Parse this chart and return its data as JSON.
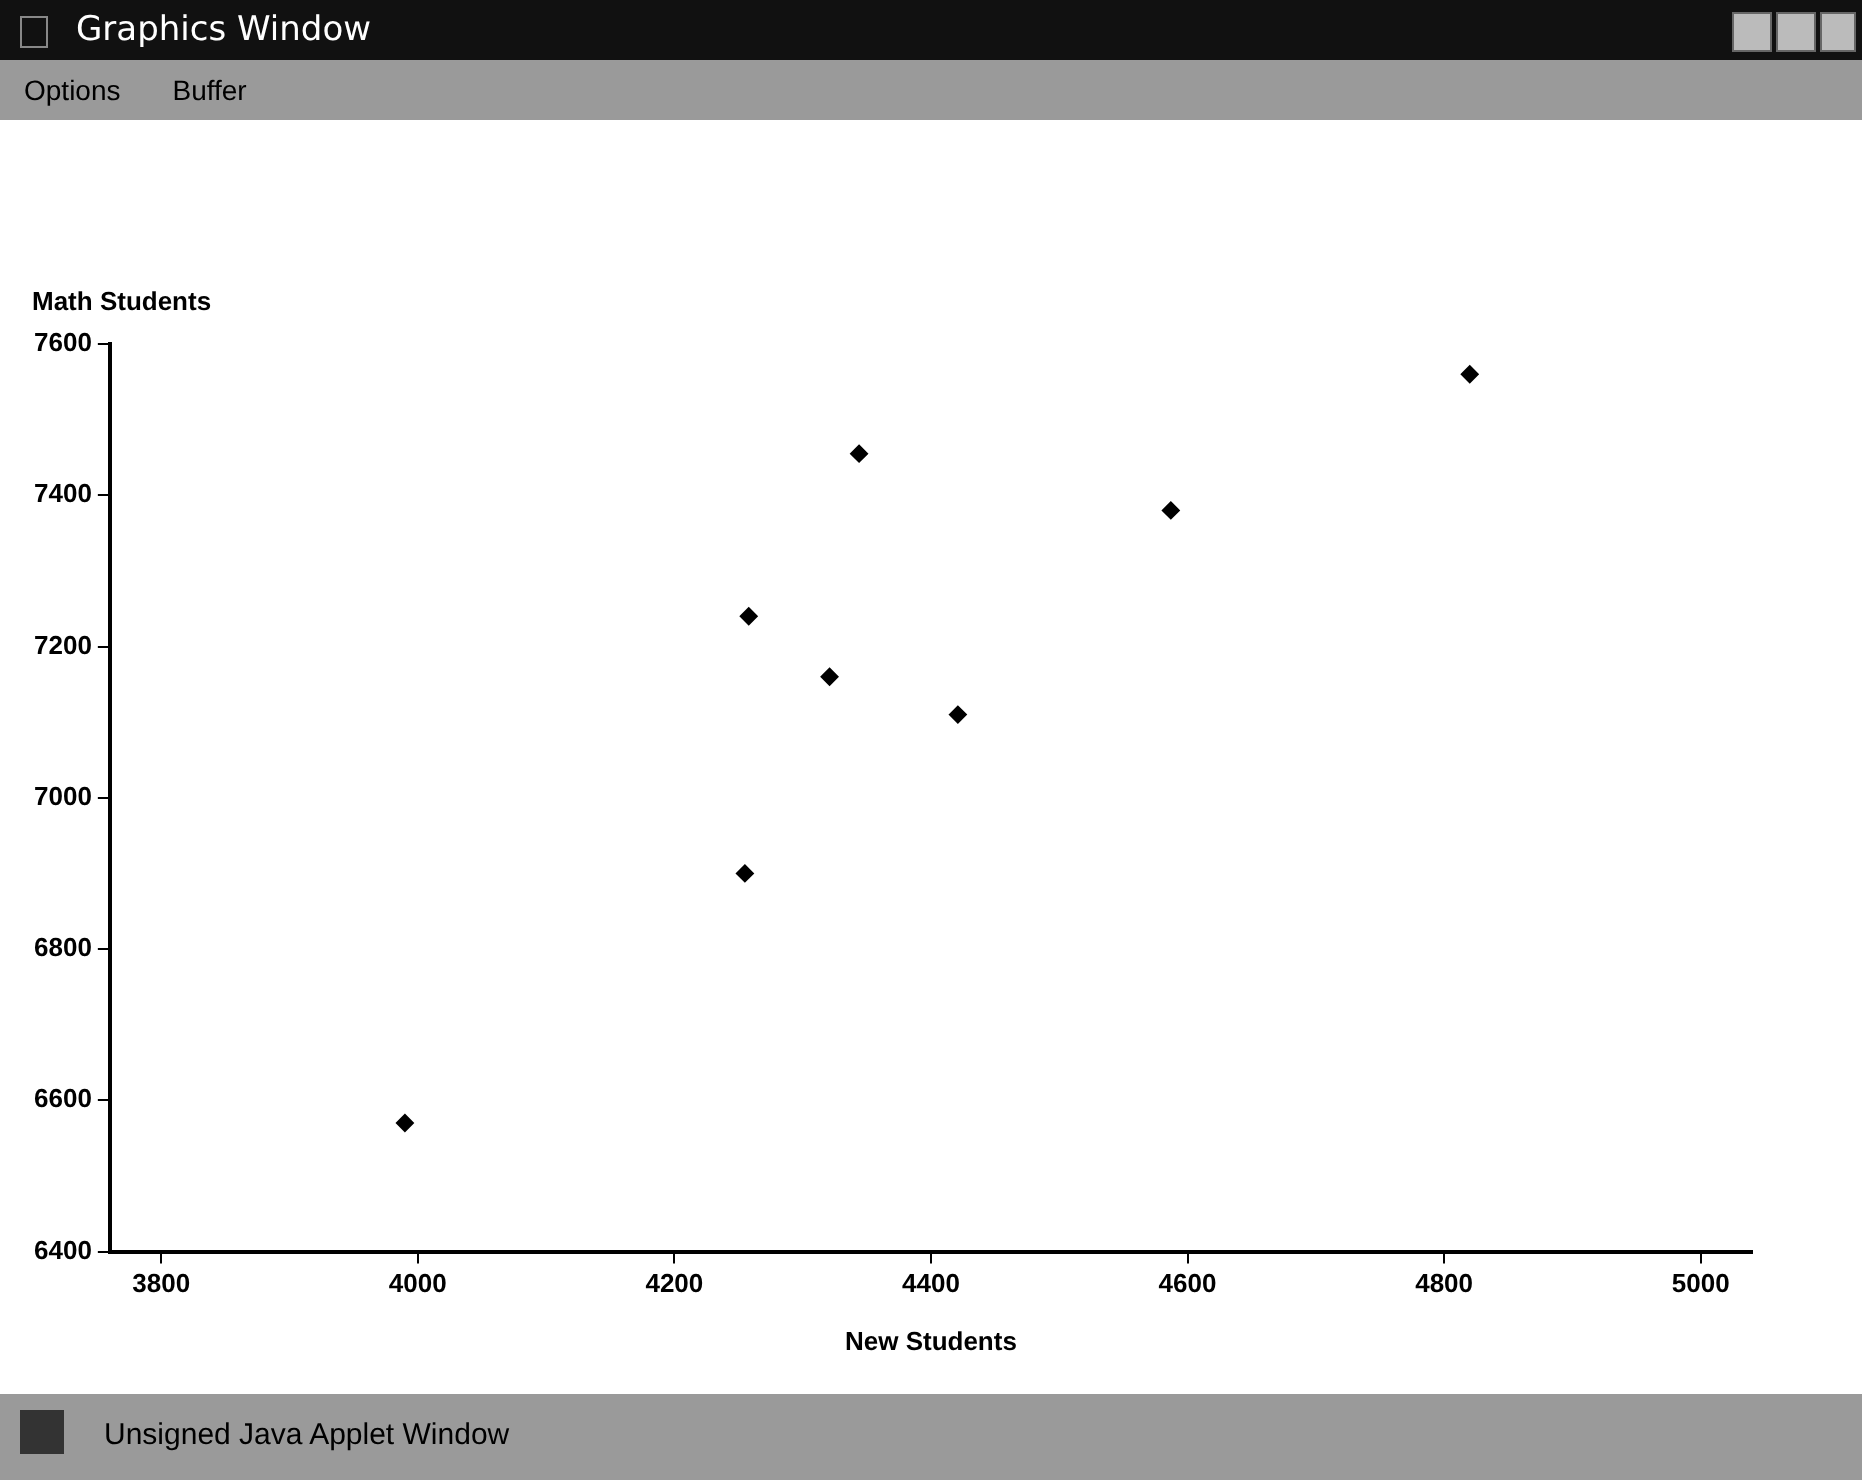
{
  "chart_data": {
    "type": "scatter",
    "title": "Graphics Window",
    "xlabel": "New Students",
    "ylabel": "Math Students",
    "annotations": [
      "Options",
      "Buffer",
      "Unsigned Java Applet Window"
    ],
    "series": [
      {
        "color": "#000000",
        "x": [
          3990,
          4255,
          4258,
          4321,
          4344,
          4421,
          4587,
          4820
        ],
        "values": [
          6570,
          6900,
          7240,
          7160,
          7455,
          7110,
          7380,
          7560
        ]
      }
    ],
    "xlim": [
      3760,
      5040
    ],
    "xticks": [
      3800,
      4000,
      4200,
      4400,
      4600,
      4800,
      5000
    ],
    "ylim": [
      6400,
      7600
    ],
    "yticks": [
      6400,
      6600,
      6800,
      7000,
      7200,
      7400,
      7600
    ],
    "grid": false,
    "legend": false,
    "marker": "diamond"
  }
}
